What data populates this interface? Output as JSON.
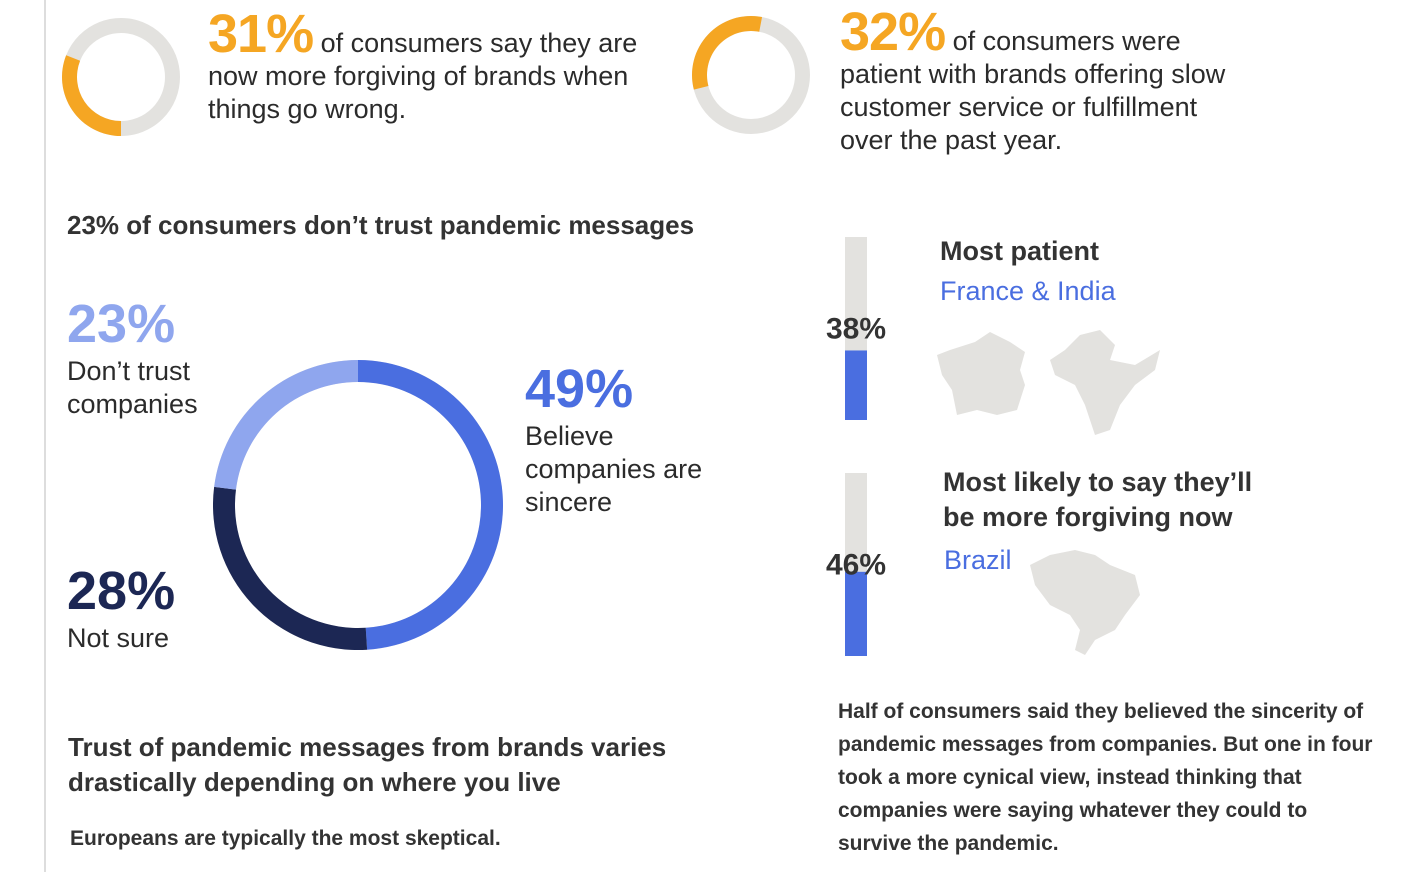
{
  "chart_data": [
    {
      "type": "donut",
      "values": [
        31
      ],
      "value_labels": [
        "31%"
      ],
      "color": "#f5a623",
      "caption": "of consumers say they are now more forgiving of brands when things go wrong."
    },
    {
      "type": "donut",
      "values": [
        32
      ],
      "value_labels": [
        "32%"
      ],
      "color": "#f5a623",
      "caption": "of consumers were patient with brands offering slow customer service or fulfillment over the past year."
    },
    {
      "type": "donut",
      "title": "23% of consumers don’t trust pandemic messages",
      "categories": [
        "Believe companies are sincere",
        "Not sure",
        "Don’t trust companies"
      ],
      "values": [
        49,
        28,
        23
      ],
      "value_labels": [
        "49%",
        "28%",
        "23%"
      ],
      "colors": [
        "#4a6ee0",
        "#1c2754",
        "#8fa6ee"
      ]
    },
    {
      "type": "bar",
      "title": "Most patient",
      "subtitle": "France & India",
      "values": [
        38
      ],
      "value_labels": [
        "38%"
      ],
      "color": "#4a6ee0",
      "ylim": [
        0,
        100
      ]
    },
    {
      "type": "bar",
      "title": "Most likely to say they’ll be more forgiving now",
      "subtitle": "Brazil",
      "values": [
        46
      ],
      "value_labels": [
        "46%"
      ],
      "color": "#4a6ee0",
      "ylim": [
        0,
        100
      ]
    }
  ],
  "heading": "Trust of pandemic messages from brands varies drastically depending on where you live",
  "note": "Europeans are typically the most skeptical.",
  "paragraph": "Half of consumers said they believed the sincerity of pandemic messages from companies. But one in four took a more cynical view, instead thinking that companies were saying whatever they could to survive the pandemic."
}
